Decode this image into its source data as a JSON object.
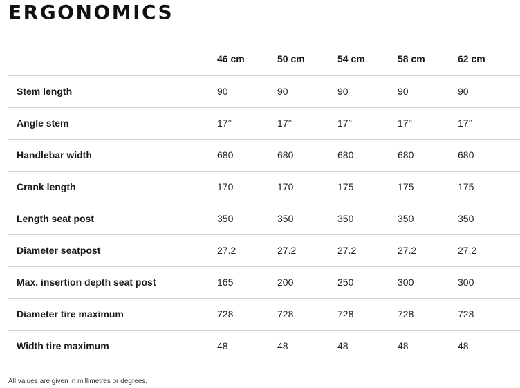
{
  "title": "ERGONOMICS",
  "table": {
    "sizes": [
      "46 cm",
      "50 cm",
      "54 cm",
      "58 cm",
      "62 cm"
    ],
    "rows": [
      {
        "label": "Stem length",
        "values": [
          "90",
          "90",
          "90",
          "90",
          "90"
        ]
      },
      {
        "label": "Angle stem",
        "values": [
          "17°",
          "17°",
          "17°",
          "17°",
          "17°"
        ]
      },
      {
        "label": "Handlebar width",
        "values": [
          "680",
          "680",
          "680",
          "680",
          "680"
        ]
      },
      {
        "label": "Crank length",
        "values": [
          "170",
          "170",
          "175",
          "175",
          "175"
        ]
      },
      {
        "label": "Length seat post",
        "values": [
          "350",
          "350",
          "350",
          "350",
          "350"
        ]
      },
      {
        "label": "Diameter seatpost",
        "values": [
          "27.2",
          "27.2",
          "27.2",
          "27.2",
          "27.2"
        ]
      },
      {
        "label": "Max. insertion depth seat post",
        "values": [
          "165",
          "200",
          "250",
          "300",
          "300"
        ]
      },
      {
        "label": "Diameter tire maximum",
        "values": [
          "728",
          "728",
          "728",
          "728",
          "728"
        ]
      },
      {
        "label": "Width tire maximum",
        "values": [
          "48",
          "48",
          "48",
          "48",
          "48"
        ]
      }
    ]
  },
  "footnote": "All values are given in millimetres or degrees."
}
